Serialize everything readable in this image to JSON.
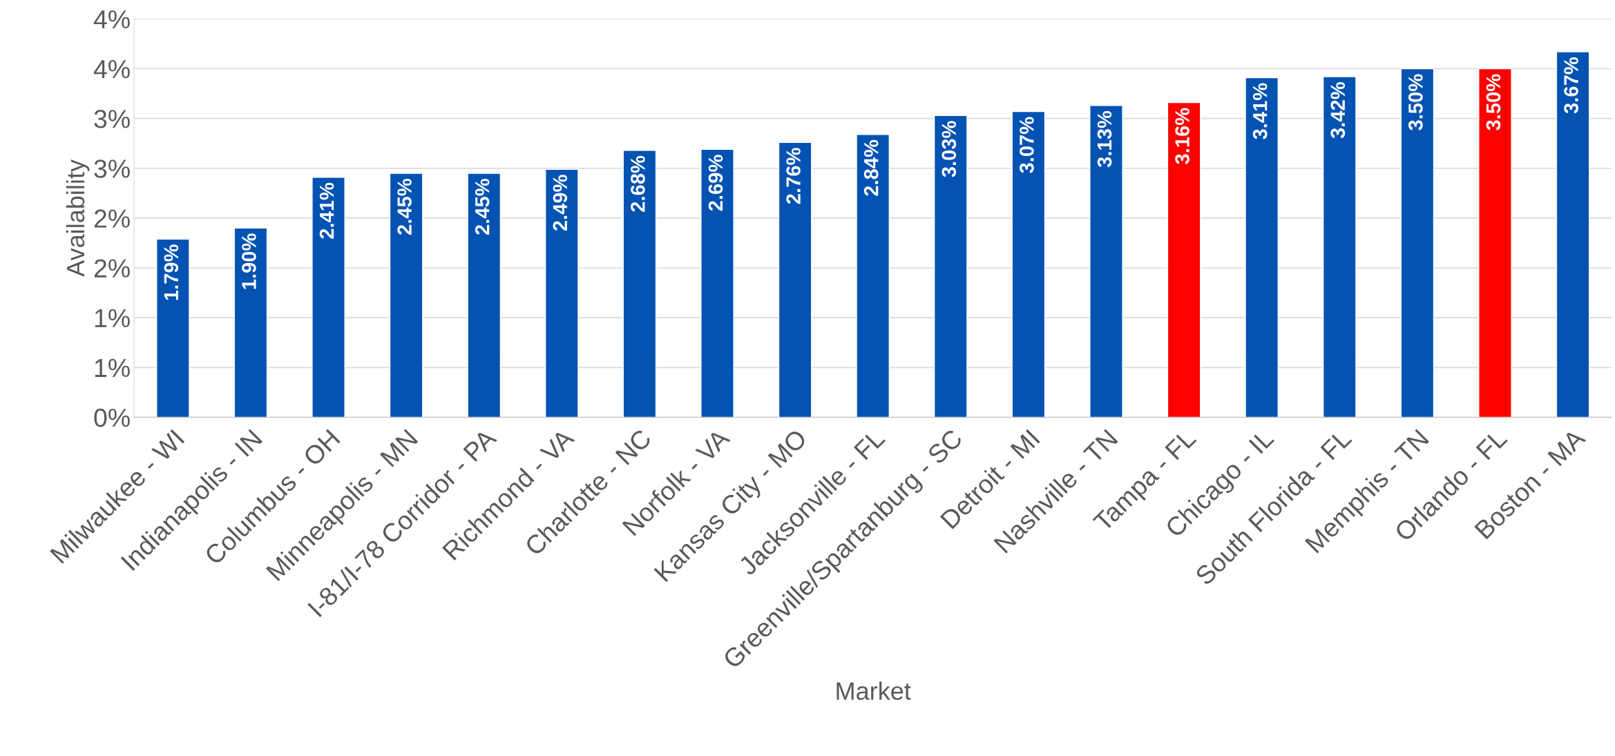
{
  "chart_data": {
    "type": "bar",
    "xlabel": "Market",
    "ylabel": "Availability",
    "categories": [
      "Milwaukee - WI",
      "Indianapolis - IN",
      "Columbus - OH",
      "Minneapolis - MN",
      "I-81/I-78 Corridor - PA",
      "Richmond - VA",
      "Charlotte - NC",
      "Norfolk - VA",
      "Kansas City - MO",
      "Jacksonville - FL",
      "Greenville/Spartanburg - SC",
      "Detroit - MI",
      "Nashville - TN",
      "Tampa - FL",
      "Chicago - IL",
      "South Florida - FL",
      "Memphis - TN",
      "Orlando - FL",
      "Boston - MA"
    ],
    "values": [
      1.79,
      1.9,
      2.41,
      2.45,
      2.45,
      2.49,
      2.68,
      2.69,
      2.76,
      2.84,
      3.03,
      3.07,
      3.13,
      3.16,
      3.41,
      3.42,
      3.5,
      3.5,
      3.67
    ],
    "value_labels": [
      "1.79%",
      "1.90%",
      "2.41%",
      "2.45%",
      "2.45%",
      "2.49%",
      "2.68%",
      "2.69%",
      "2.76%",
      "2.84%",
      "3.03%",
      "3.07%",
      "3.13%",
      "3.16%",
      "3.41%",
      "3.42%",
      "3.50%",
      "3.50%",
      "3.67%"
    ],
    "colors": [
      "#0453b3",
      "#0453b3",
      "#0453b3",
      "#0453b3",
      "#0453b3",
      "#0453b3",
      "#0453b3",
      "#0453b3",
      "#0453b3",
      "#0453b3",
      "#0453b3",
      "#0453b3",
      "#0453b3",
      "#ff0000",
      "#0453b3",
      "#0453b3",
      "#0453b3",
      "#ff0000",
      "#0453b3"
    ],
    "ylim": [
      0,
      4.0
    ],
    "yticks": [
      {
        "value": 0,
        "label": "0%"
      },
      {
        "value": 0.5,
        "label": "1%"
      },
      {
        "value": 1.0,
        "label": "1%"
      },
      {
        "value": 1.5,
        "label": "2%"
      },
      {
        "value": 2.0,
        "label": "2%"
      },
      {
        "value": 2.5,
        "label": "3%"
      },
      {
        "value": 3.0,
        "label": "3%"
      },
      {
        "value": 3.5,
        "label": "4%"
      },
      {
        "value": 4.0,
        "label": "4%"
      }
    ],
    "grid": "y",
    "legend": false
  }
}
